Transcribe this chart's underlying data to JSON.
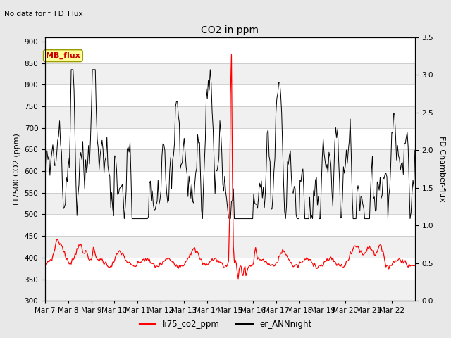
{
  "title": "CO2 in ppm",
  "top_label": "No data for f_FD_Flux",
  "ylabel_left": "LI7500 CO2 (ppm)",
  "ylabel_right": "FD Chamber-flux",
  "ylim_left": [
    300,
    910
  ],
  "ylim_right": [
    0.0,
    3.5
  ],
  "yticks_left": [
    300,
    350,
    400,
    450,
    500,
    550,
    600,
    650,
    700,
    750,
    800,
    850,
    900
  ],
  "yticks_right": [
    0.0,
    0.5,
    1.0,
    1.5,
    2.0,
    2.5,
    3.0,
    3.5
  ],
  "legend_entries": [
    "li75_co2_ppm",
    "er_ANNnight"
  ],
  "legend_colors": [
    "red",
    "black"
  ],
  "background_color": "#e8e8e8",
  "plot_bg_stripe1": "#f0f0f0",
  "plot_bg_stripe2": "#ffffff",
  "mb_flux_box_color": "#ffff99",
  "mb_flux_text_color": "#cc0000",
  "mb_flux_edge_color": "#999900",
  "x_tick_labels": [
    "Mar 7",
    "Mar 8",
    "Mar 9",
    "Mar 10",
    "Mar 11",
    "Mar 12",
    "Mar 13",
    "Mar 14",
    "Mar 15",
    "Mar 16",
    "Mar 17",
    "Mar 18",
    "Mar 19",
    "Mar 20",
    "Mar 21",
    "Mar 22"
  ],
  "n_days": 16,
  "n_points": 384
}
